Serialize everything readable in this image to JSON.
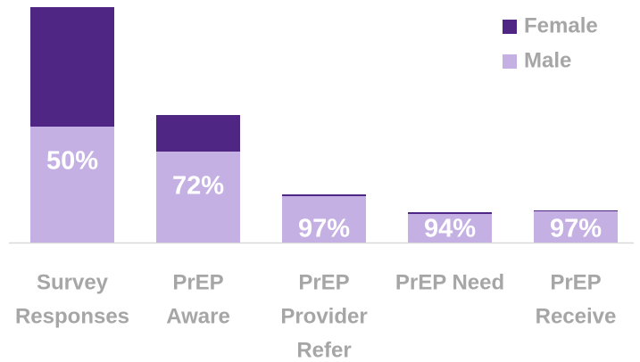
{
  "chart_data": {
    "type": "stacked_bar",
    "categories": [
      [
        "Survey",
        "Responses"
      ],
      [
        "PrEP",
        "Aware"
      ],
      [
        "PrEP",
        "Provider",
        "Refer"
      ],
      [
        "PrEP Need"
      ],
      [
        "PrEP",
        "Receive"
      ]
    ],
    "series": [
      {
        "name": "Male",
        "color": "#c5b0e3",
        "values": [
          130,
          102,
          52,
          32,
          35
        ]
      },
      {
        "name": "Female",
        "color": "#4f2683",
        "values": [
          134,
          41,
          2,
          2,
          1
        ]
      }
    ],
    "bar_labels": [
      "50%",
      "72%",
      "97%",
      "94%",
      "97%"
    ],
    "ylim": [
      0,
      264
    ],
    "legend": "top-right"
  }
}
